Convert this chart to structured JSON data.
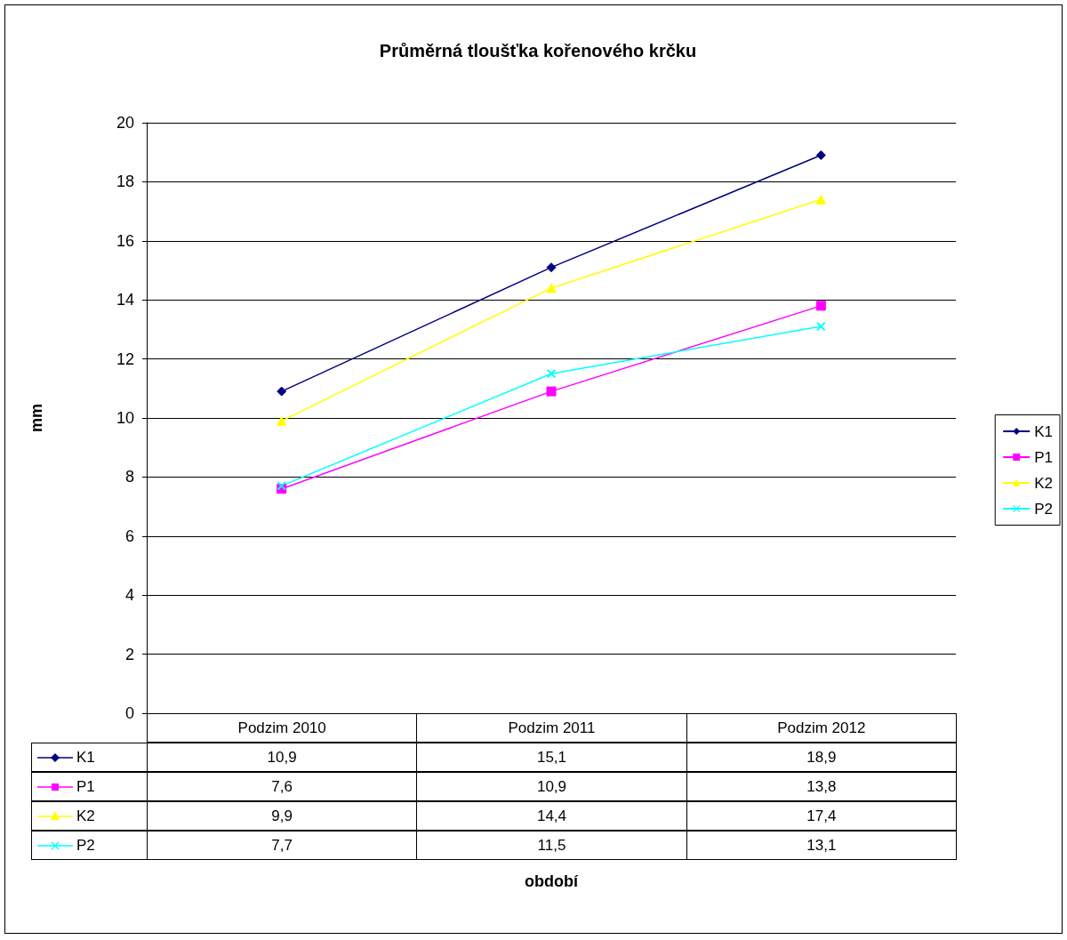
{
  "chart_data": {
    "type": "line",
    "title": "Průměrná tloušťka kořenového krčku",
    "ylabel": "mm",
    "annotations": [
      "období"
    ],
    "categories": [
      "Podzim 2010",
      "Podzim 2011",
      "Podzim 2012"
    ],
    "series": [
      {
        "name": "K1",
        "color": "#000080",
        "marker": "diamond",
        "values": [
          10.9,
          15.1,
          18.9
        ],
        "value_labels": [
          "10,9",
          "15,1",
          "18,9"
        ]
      },
      {
        "name": "P1",
        "color": "#ff00ff",
        "marker": "square",
        "values": [
          7.6,
          10.9,
          13.8
        ],
        "value_labels": [
          "7,6",
          "10,9",
          "13,8"
        ]
      },
      {
        "name": "K2",
        "color": "#ffff00",
        "marker": "triangle",
        "values": [
          9.9,
          14.4,
          17.4
        ],
        "value_labels": [
          "9,9",
          "14,4",
          "17,4"
        ]
      },
      {
        "name": "P2",
        "color": "#00ffff",
        "marker": "cross",
        "values": [
          7.7,
          11.5,
          13.1
        ],
        "value_labels": [
          "7,7",
          "11,5",
          "13,1"
        ]
      }
    ],
    "ylim": [
      0,
      20
    ],
    "yticks": [
      0,
      2,
      4,
      6,
      8,
      10,
      12,
      14,
      16,
      18,
      20
    ],
    "grid": "y",
    "legend": "right"
  }
}
